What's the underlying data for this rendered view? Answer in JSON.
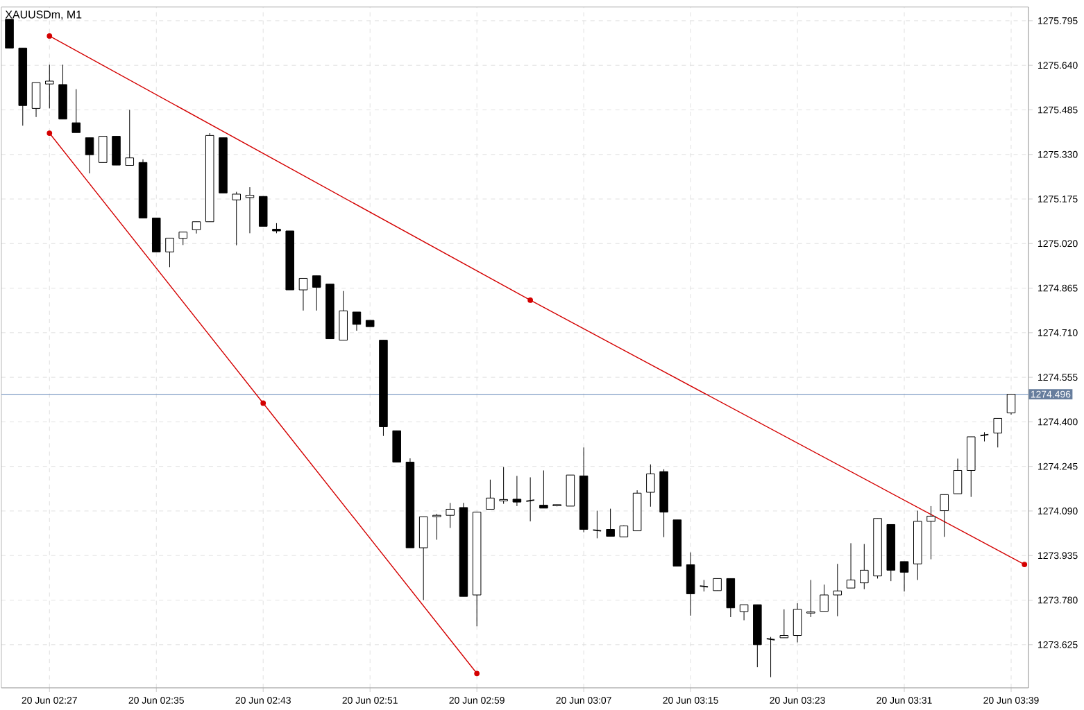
{
  "chart_data": {
    "type": "candlestick",
    "title": "XAUUSDm, M1",
    "ylim": [
      1273.475,
      1275.843
    ],
    "categories": [
      null,
      null,
      null,
      "20 Jun 02:27",
      null,
      null,
      null,
      null,
      null,
      null,
      null,
      "20 Jun 02:35",
      null,
      null,
      null,
      null,
      null,
      null,
      null,
      "20 Jun 02:43",
      null,
      null,
      null,
      null,
      null,
      null,
      null,
      "20 Jun 02:51",
      null,
      null,
      null,
      null,
      null,
      null,
      null,
      "20 Jun 02:59",
      null,
      null,
      null,
      null,
      null,
      null,
      null,
      "20 Jun 03:07",
      null,
      null,
      null,
      null,
      null,
      null,
      null,
      "20 Jun 03:15",
      null,
      null,
      null,
      null,
      null,
      null,
      null,
      "20 Jun 03:23",
      null,
      null,
      null,
      null,
      null,
      null,
      null,
      "20 Jun 03:31",
      null,
      null,
      null,
      null,
      null,
      null,
      null,
      "20 Jun 03:39",
      null
    ],
    "yticks": [
      1273.625,
      {
        "value": 1273.78,
        "label": "1273.780"
      },
      1273.935,
      {
        "value": 1274.09,
        "label": "1274.090"
      },
      1274.245,
      {
        "value": 1274.4,
        "label": "1274.400"
      },
      1274.555,
      {
        "value": 1274.71,
        "label": "1274.710"
      },
      1274.865,
      {
        "value": 1275.02,
        "label": "1275.020"
      },
      1275.175,
      {
        "value": 1275.33,
        "label": "1275.330"
      },
      1275.485,
      {
        "value": 1275.64,
        "label": "1275.640"
      },
      1275.795
    ],
    "grid": true,
    "ref_lines": [
      {
        "axis": "y",
        "value": 1274.496,
        "label": "1274.496",
        "color": "#7f9cc4"
      }
    ],
    "series": [
      {
        "ohlc": [
          [
            1275.8,
            1275.8,
            1275.7,
            1275.7
          ],
          [
            1275.7,
            1275.7,
            1275.43,
            1275.5
          ],
          [
            1275.49,
            1275.58,
            1275.46,
            1275.58
          ],
          [
            1275.575,
            1275.642,
            1275.49,
            1275.585
          ],
          [
            1275.573,
            1275.642,
            1275.453,
            1275.453
          ],
          [
            1275.44,
            1275.557,
            1275.406,
            1275.406
          ],
          [
            1275.388,
            1275.388,
            1275.264,
            1275.329
          ],
          [
            1275.302,
            1275.393,
            1275.302,
            1275.393
          ],
          [
            1275.393,
            1275.393,
            1275.293,
            1275.293
          ],
          [
            1275.292,
            1275.485,
            1275.292,
            1275.318
          ],
          [
            1275.302,
            1275.313,
            1275.109,
            1275.109
          ],
          [
            1275.109,
            1275.109,
            1274.991,
            1274.991
          ],
          [
            1274.991,
            1275.039,
            1274.938,
            1275.039
          ],
          [
            1275.038,
            1275.06,
            1275.015,
            1275.06
          ],
          [
            1275.068,
            1275.096,
            1275.055,
            1275.096
          ],
          [
            1275.096,
            1275.404,
            1275.096,
            1275.396
          ],
          [
            1275.388,
            1275.388,
            1275.196,
            1275.196
          ],
          [
            1275.172,
            1275.2,
            1275.014,
            1275.192
          ],
          [
            1275.18,
            1275.216,
            1275.056,
            1275.188
          ],
          [
            1275.184,
            1275.184,
            1275.08,
            1275.08
          ],
          [
            1275.07,
            1275.091,
            1275.056,
            1275.064
          ],
          [
            1275.064,
            1275.064,
            1274.859,
            1274.859
          ],
          [
            1274.859,
            1274.899,
            1274.787,
            1274.899
          ],
          [
            1274.908,
            1274.908,
            1274.787,
            1274.868
          ],
          [
            1274.879,
            1274.879,
            1274.689,
            1274.689
          ],
          [
            1274.684,
            1274.855,
            1274.684,
            1274.786
          ],
          [
            1274.782,
            1274.782,
            1274.717,
            1274.739
          ],
          [
            1274.753,
            1274.753,
            1274.731,
            1274.731
          ],
          [
            1274.684,
            1274.684,
            1274.351,
            1274.383
          ],
          [
            1274.369,
            1274.369,
            1274.26,
            1274.26
          ],
          [
            1274.26,
            1274.273,
            1273.962,
            1273.962
          ],
          [
            1273.962,
            1274.07,
            1273.78,
            1274.07
          ],
          [
            1274.07,
            1274.08,
            1273.99,
            1274.075
          ],
          [
            1274.075,
            1274.118,
            1274.031,
            1274.096
          ],
          [
            1274.102,
            1274.118,
            1273.793,
            1273.793
          ],
          [
            1273.798,
            1274.086,
            1273.689,
            1274.086
          ],
          [
            1274.096,
            1274.199,
            1274.096,
            1274.135
          ],
          [
            1274.125,
            1274.243,
            1274.115,
            1274.13
          ],
          [
            1274.131,
            1274.212,
            1274.107,
            1274.121
          ],
          [
            1274.124,
            1274.207,
            1274.054,
            1274.128
          ],
          [
            1274.11,
            1274.231,
            1274.1,
            1274.1
          ],
          [
            1274.108,
            1274.112,
            1274.106,
            1274.112
          ],
          [
            1274.107,
            1274.215,
            1274.107,
            1274.215
          ],
          [
            1274.212,
            1274.311,
            1274.016,
            1274.026
          ],
          [
            1274.024,
            1274.091,
            1273.995,
            1274.021
          ],
          [
            1274.026,
            1274.098,
            1274.002,
            1274.002
          ],
          [
            1274.0,
            1274.04,
            1274.0,
            1274.038
          ],
          [
            1274.021,
            1274.162,
            1274.021,
            1274.152
          ],
          [
            1274.155,
            1274.252,
            1274.105,
            1274.219
          ],
          [
            1274.227,
            1274.235,
            1273.999,
            1274.086
          ],
          [
            1274.059,
            1274.059,
            1273.898,
            1273.898
          ],
          [
            1273.903,
            1273.946,
            1273.726,
            1273.802
          ],
          [
            1273.829,
            1273.85,
            1273.81,
            1273.826
          ],
          [
            1273.813,
            1273.855,
            1273.813,
            1273.855
          ],
          [
            1273.855,
            1273.855,
            1273.721,
            1273.753
          ],
          [
            1273.74,
            1273.764,
            1273.71,
            1273.764
          ],
          [
            1273.764,
            1273.764,
            1273.547,
            1273.625
          ],
          [
            1273.646,
            1273.652,
            1273.512,
            1273.642
          ],
          [
            1273.649,
            1273.748,
            1273.649,
            1273.657
          ],
          [
            1273.657,
            1273.769,
            1273.633,
            1273.748
          ],
          [
            1273.735,
            1273.85,
            1273.721,
            1273.739
          ],
          [
            1273.741,
            1273.834,
            1273.741,
            1273.798
          ],
          [
            1273.798,
            1273.906,
            1273.724,
            1273.812
          ],
          [
            1273.822,
            1273.978,
            1273.822,
            1273.85
          ],
          [
            1273.84,
            1273.975,
            1273.818,
            1273.884
          ],
          [
            1273.864,
            1274.064,
            1273.855,
            1274.064
          ],
          [
            1274.043,
            1274.043,
            1273.846,
            1273.884
          ],
          [
            1273.914,
            1273.914,
            1273.81,
            1273.877
          ],
          [
            1273.906,
            1274.091,
            1273.85,
            1274.054
          ],
          [
            1274.054,
            1274.107,
            1273.922,
            1274.072
          ],
          [
            1274.091,
            1274.147,
            1274.0,
            1274.147
          ],
          [
            1274.15,
            1274.272,
            1274.15,
            1274.231
          ],
          [
            1274.231,
            1274.348,
            1274.139,
            1274.348
          ],
          [
            1274.352,
            1274.364,
            1274.332,
            1274.356
          ],
          [
            1274.361,
            1274.412,
            1274.311,
            1274.412
          ],
          [
            1274.431,
            1274.496,
            1274.425,
            1274.496
          ],
          null
        ]
      },
      {
        "type": "line",
        "color": "#d40000",
        "marker": "circle",
        "values": [
          null,
          null,
          null,
          1275.742,
          null,
          null,
          null,
          null,
          null,
          null,
          null,
          null,
          null,
          null,
          null,
          null,
          null,
          null,
          null,
          null,
          null,
          null,
          null,
          null,
          null,
          null,
          null,
          null,
          null,
          null,
          null,
          null,
          null,
          null,
          null,
          null,
          null,
          null,
          null,
          1274.823,
          null,
          null,
          null,
          null,
          null,
          null,
          null,
          null,
          null,
          null,
          null,
          null,
          null,
          null,
          null,
          null,
          null,
          null,
          null,
          null,
          null,
          null,
          null,
          null,
          null,
          null,
          null,
          null,
          null,
          null,
          null,
          null,
          null,
          null,
          null,
          null,
          1273.904
        ]
      },
      {
        "type": "line",
        "color": "#d40000",
        "marker": "circle",
        "values": [
          null,
          null,
          null,
          1275.404,
          null,
          null,
          null,
          null,
          null,
          null,
          null,
          null,
          null,
          null,
          null,
          null,
          null,
          null,
          null,
          1274.465,
          null,
          null,
          null,
          null,
          null,
          null,
          null,
          null,
          null,
          null,
          null,
          null,
          null,
          null,
          null,
          1273.525,
          null,
          null,
          null,
          null,
          null,
          null,
          null,
          null,
          null,
          null,
          null,
          null,
          null,
          null,
          null,
          null,
          null,
          null,
          null,
          null,
          null,
          null,
          null,
          null,
          null,
          null,
          null,
          null,
          null,
          null,
          null,
          null,
          null,
          null,
          null,
          null,
          null,
          null,
          null,
          null,
          null
        ]
      }
    ]
  }
}
